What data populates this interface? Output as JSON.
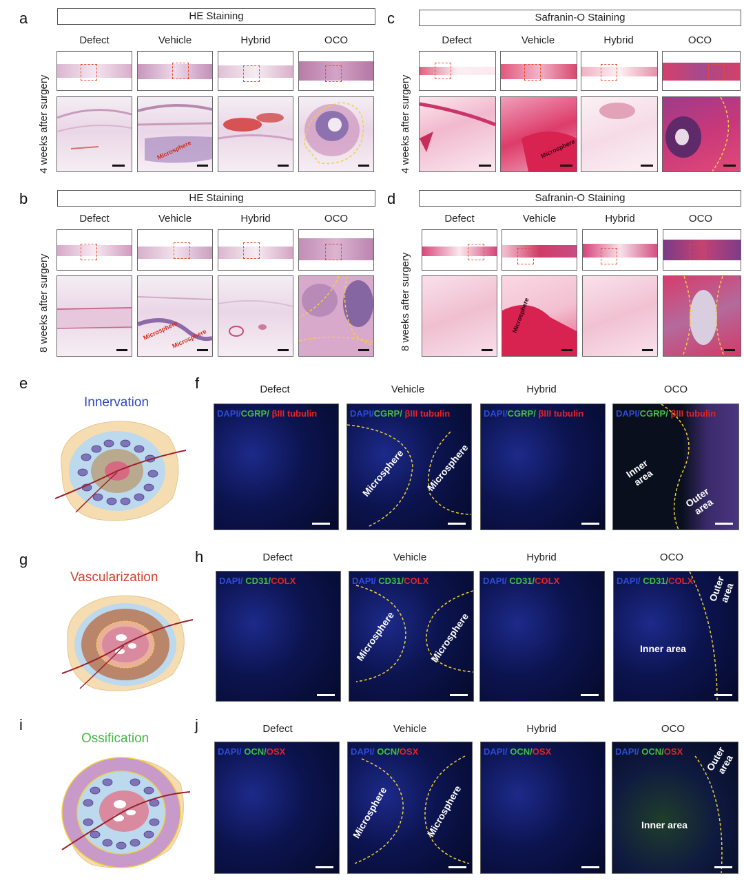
{
  "panels": {
    "a": {
      "letter": "a",
      "header": "HE Staining",
      "columns": [
        "Defect",
        "Vehicle",
        "Hybrid",
        "OCO"
      ],
      "row_label": "4 weeks after surgery",
      "annotations": [
        "Microsphere"
      ]
    },
    "b": {
      "letter": "b",
      "header": "HE Staining",
      "columns": [
        "Defect",
        "Vehicle",
        "Hybrid",
        "OCO"
      ],
      "row_label": "8 weeks after surgery",
      "annotations": [
        "Microsphere",
        "Microsphere"
      ]
    },
    "c": {
      "letter": "c",
      "header": "Safranin-O Staining",
      "columns": [
        "Defect",
        "Vehicle",
        "Hybrid",
        "OCO"
      ],
      "row_label": "4 weeks after surgery",
      "annotations": [
        "Microsphere"
      ]
    },
    "d": {
      "letter": "d",
      "header": "Safranin-O Staining",
      "columns": [
        "Defect",
        "Vehicle",
        "Hybrid",
        "OCO"
      ],
      "row_label": "8 weeks after surgery",
      "annotations": [
        "Microsphere"
      ]
    },
    "e": {
      "letter": "e",
      "title": "Innervation"
    },
    "f": {
      "letter": "f",
      "columns": [
        "Defect",
        "Vehicle",
        "Hybrid",
        "OCO"
      ],
      "stain": {
        "dapi": "DAPI/",
        "green": "CGRP/",
        "red": "βIII tubulin"
      },
      "annotations": {
        "microsphere": "Microsphere",
        "inner": "Inner\narea",
        "outer": "Outer\narea"
      }
    },
    "g": {
      "letter": "g",
      "title": "Vascularization"
    },
    "h": {
      "letter": "h",
      "columns": [
        "Defect",
        "Vehicle",
        "Hybrid",
        "OCO"
      ],
      "stain": {
        "dapi": "DAPI/",
        "green": "CD31/",
        "red": "COLX"
      },
      "annotations": {
        "microsphere": "Microsphere",
        "inner": "Inner area",
        "outer": "Outer\narea"
      }
    },
    "i": {
      "letter": "i",
      "title": "Ossification"
    },
    "j": {
      "letter": "j",
      "columns": [
        "Defect",
        "Vehicle",
        "Hybrid",
        "OCO"
      ],
      "stain": {
        "dapi": "DAPI/",
        "green": "OCN/",
        "red": "OSX"
      },
      "annotations": {
        "microsphere": "Microsphere",
        "inner": "Inner area",
        "outer": "Outer\narea"
      }
    }
  },
  "colors": {
    "roi": "#e84a2c",
    "dapi": "#2e4bd6",
    "green": "#3ec03e",
    "red": "#e42424",
    "dashed": "#f2d13a"
  }
}
